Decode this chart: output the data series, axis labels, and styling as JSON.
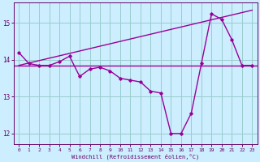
{
  "x": [
    0,
    1,
    2,
    3,
    4,
    5,
    6,
    7,
    8,
    9,
    10,
    11,
    12,
    13,
    14,
    15,
    16,
    17,
    18,
    19,
    20,
    21,
    22,
    23
  ],
  "windchill": [
    14.2,
    13.9,
    13.85,
    13.85,
    13.95,
    14.1,
    13.55,
    13.75,
    13.8,
    13.7,
    13.5,
    13.45,
    13.4,
    13.15,
    13.1,
    12.0,
    12.0,
    12.55,
    13.9,
    15.25,
    15.1,
    14.55,
    13.85,
    13.85
  ],
  "mean_value": 13.85,
  "trend_x": [
    0,
    23
  ],
  "trend_y": [
    13.85,
    15.35
  ],
  "ylim": [
    11.7,
    15.55
  ],
  "xlim": [
    -0.5,
    23.5
  ],
  "bg_color": "#cceeff",
  "line_color": "#990099",
  "grid_color": "#99cccc",
  "xlabel": "Windchill (Refroidissement éolien,°C)",
  "xlabel_color": "#660066",
  "tick_color": "#660066",
  "yticks": [
    12,
    13,
    14,
    15
  ],
  "xticks": [
    0,
    1,
    2,
    3,
    4,
    5,
    6,
    7,
    8,
    9,
    10,
    11,
    12,
    13,
    14,
    15,
    16,
    17,
    18,
    19,
    20,
    21,
    22,
    23
  ]
}
